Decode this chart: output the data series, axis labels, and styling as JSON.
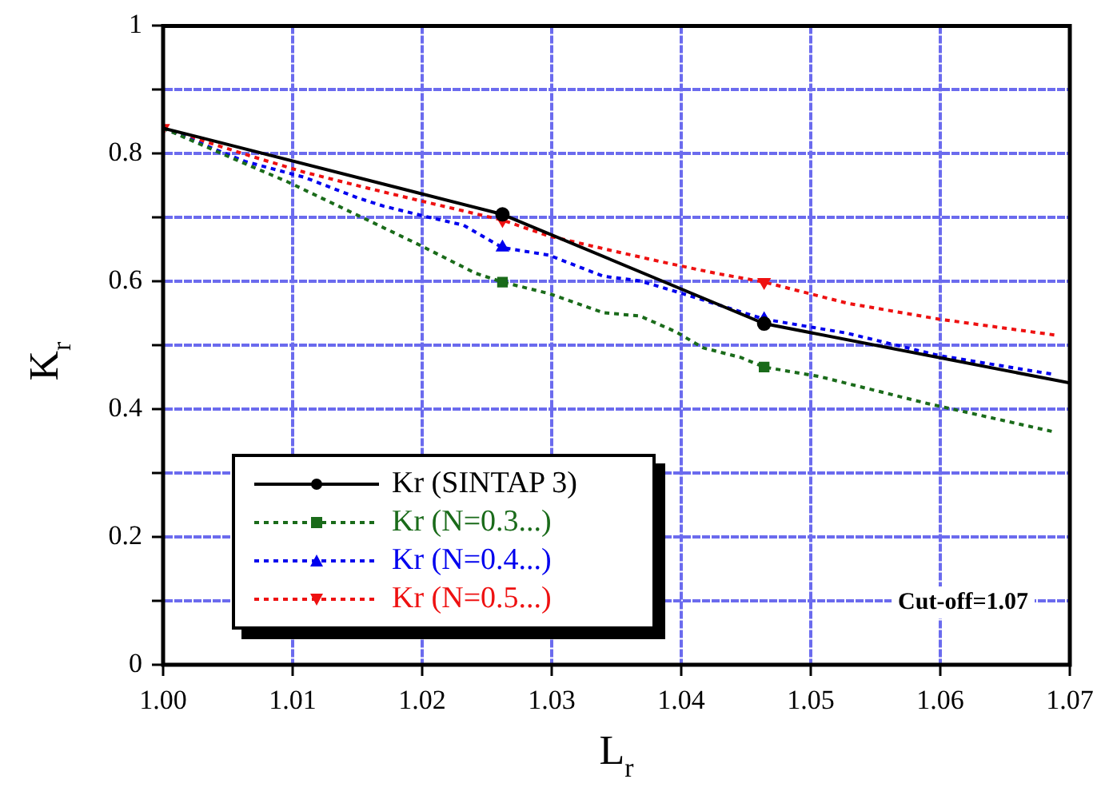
{
  "chart_data": {
    "type": "line",
    "xlabel": "L$_{r}$",
    "ylabel": "K$_{r}$",
    "xlim": [
      1.0,
      1.07
    ],
    "ylim": [
      0,
      1
    ],
    "xticks": [
      {
        "value": 1.0,
        "label": "1.00"
      },
      {
        "value": 1.01,
        "label": "1.01"
      },
      {
        "value": 1.02,
        "label": "1.02"
      },
      {
        "value": 1.03,
        "label": "1.03"
      },
      {
        "value": 1.04,
        "label": "1.04"
      },
      {
        "value": 1.05,
        "label": "1.05"
      },
      {
        "value": 1.06,
        "label": "1.06"
      },
      {
        "value": 1.07,
        "label": "1.07"
      }
    ],
    "yticks": [
      0,
      {
        "value": 0.1,
        "label": null
      },
      0.2,
      {
        "value": 0.3,
        "label": null
      },
      0.4,
      {
        "value": 0.5,
        "label": null
      },
      0.6,
      {
        "value": 0.7,
        "label": null
      },
      0.8,
      {
        "value": 0.9,
        "label": null
      },
      1
    ],
    "grid": true,
    "legend": "bottom left",
    "annotations": [
      "Cut-off=1.07"
    ],
    "series": [
      {
        "name": "Kr (SINTAP 3)",
        "color": "#000000",
        "line_style": "solid",
        "marker": "none",
        "x": [
          1.0,
          1.0262,
          1.0464,
          1.07
        ],
        "values": [
          0.84,
          0.705,
          0.534,
          0.441
        ]
      },
      {
        "type": "scatter",
        "color": "#000000",
        "marker": "circle",
        "x": [
          1.0262,
          1.0464
        ],
        "values": [
          0.705,
          0.534
        ]
      },
      {
        "name": "Kr (N=0.3...)",
        "color": "#1a6b1a",
        "line_style": "dotted",
        "marker": "none",
        "x": [
          1.0,
          1.0059,
          1.0096,
          1.0158,
          1.0199,
          1.0241,
          1.0262,
          1.0298,
          1.034,
          1.0368,
          1.0396,
          1.0417,
          1.0446,
          1.0464,
          1.0507,
          1.059,
          1.0689
        ],
        "values": [
          0.84,
          0.788,
          0.756,
          0.696,
          0.656,
          0.613,
          0.599,
          0.581,
          0.551,
          0.546,
          0.521,
          0.496,
          0.481,
          0.466,
          0.451,
          0.409,
          0.364
        ]
      },
      {
        "type": "scatter",
        "color": "#1a6b1a",
        "marker": "square",
        "x": [
          1.0262,
          1.0464
        ],
        "values": [
          0.599,
          0.466
        ]
      },
      {
        "name": "Kr (N=0.4...)",
        "color": "#0000ee",
        "line_style": "dotted",
        "marker": "none",
        "x": [
          1.0,
          1.0063,
          1.0109,
          1.015,
          1.017,
          1.0204,
          1.0232,
          1.0262,
          1.0298,
          1.034,
          1.0368,
          1.0401,
          1.0464,
          1.0528,
          1.0599,
          1.0689
        ],
        "values": [
          0.84,
          0.788,
          0.763,
          0.731,
          0.718,
          0.701,
          0.688,
          0.653,
          0.641,
          0.608,
          0.601,
          0.581,
          0.541,
          0.519,
          0.484,
          0.454
        ]
      },
      {
        "type": "scatter",
        "color": "#0000ee",
        "marker": "triangle",
        "x": [
          1.0262,
          1.0464
        ],
        "values": [
          0.653,
          0.541
        ]
      },
      {
        "name": "Kr (N=0.5...)",
        "color": "#ee1111",
        "line_style": "dotted",
        "marker": "none",
        "x": [
          1.0,
          1.0068,
          1.0109,
          1.0158,
          1.0199,
          1.0241,
          1.0262,
          1.0298,
          1.0347,
          1.0384,
          1.0426,
          1.0464,
          1.0528,
          1.0599,
          1.0689
        ],
        "values": [
          0.84,
          0.796,
          0.771,
          0.746,
          0.726,
          0.706,
          0.696,
          0.671,
          0.648,
          0.631,
          0.613,
          0.599,
          0.566,
          0.541,
          0.516
        ]
      },
      {
        "type": "scatter",
        "color": "#ee1111",
        "marker": "triangle-down",
        "x": [
          1.0,
          1.0262,
          1.0464
        ],
        "values": [
          0.84,
          0.696,
          0.599
        ]
      }
    ]
  }
}
